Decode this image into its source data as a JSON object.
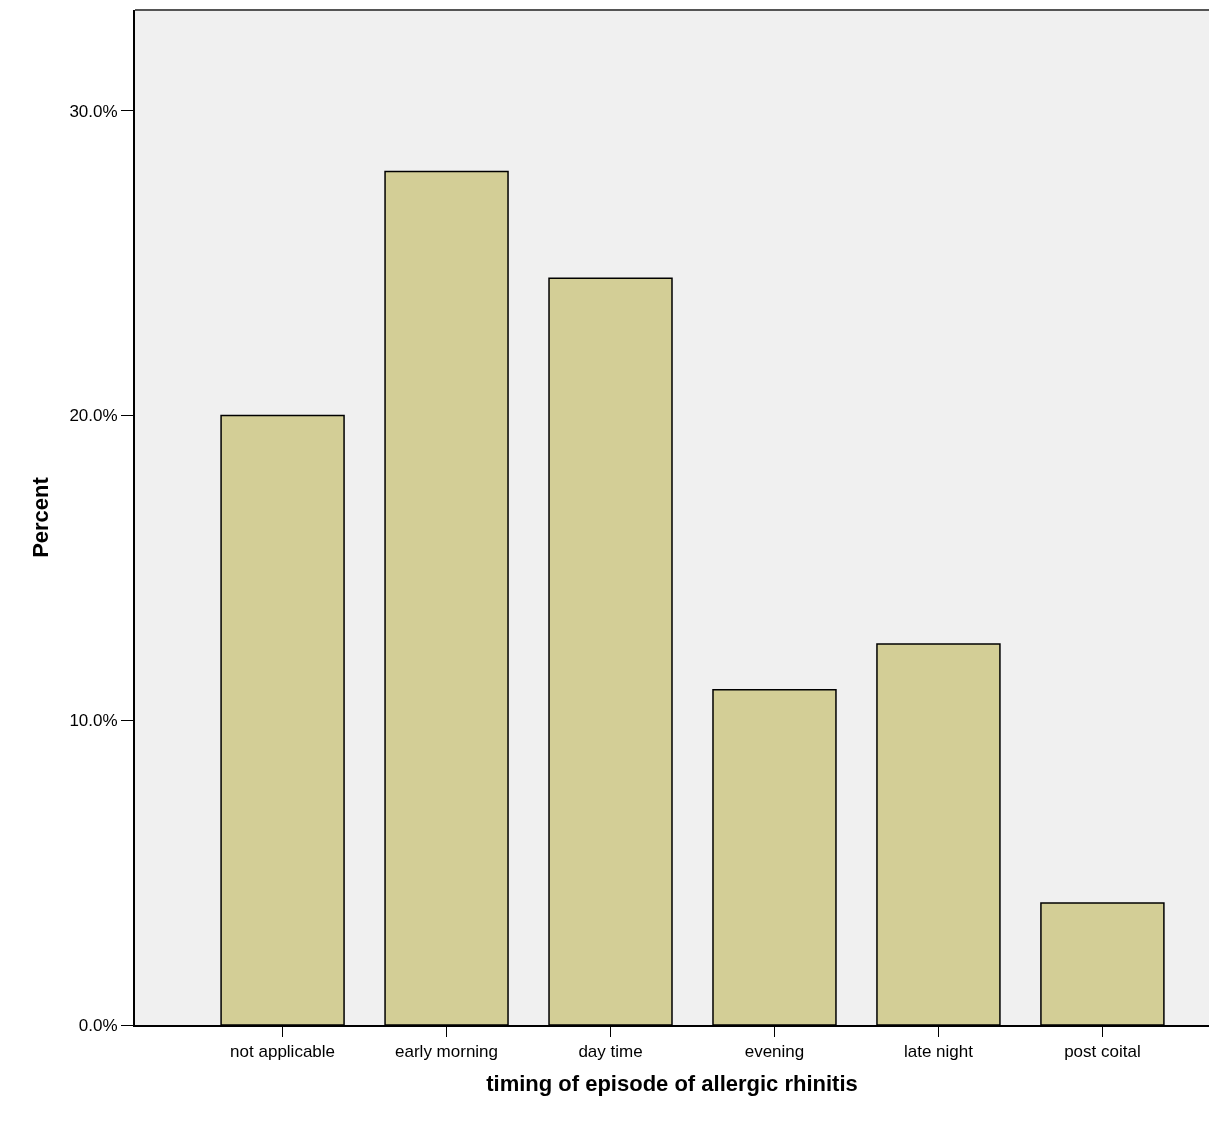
{
  "chart_data": {
    "type": "bar",
    "xlabel": "timing of episode of allergic rhinitis",
    "ylabel": "Percent",
    "categories": [
      "not applicable",
      "early morning",
      "day time",
      "evening",
      "late night",
      "post coital"
    ],
    "values": [
      20.0,
      28.0,
      24.5,
      11.0,
      12.5,
      4.0
    ],
    "color": "#d3ce96",
    "ylim": [
      0,
      33.3
    ],
    "yticks": [
      {
        "value": 0,
        "label": "0.0%"
      },
      {
        "value": 10,
        "label": "10.0%"
      },
      {
        "value": 20,
        "label": "20.0%"
      },
      {
        "value": 30,
        "label": "30.0%"
      }
    ],
    "grid": false
  }
}
